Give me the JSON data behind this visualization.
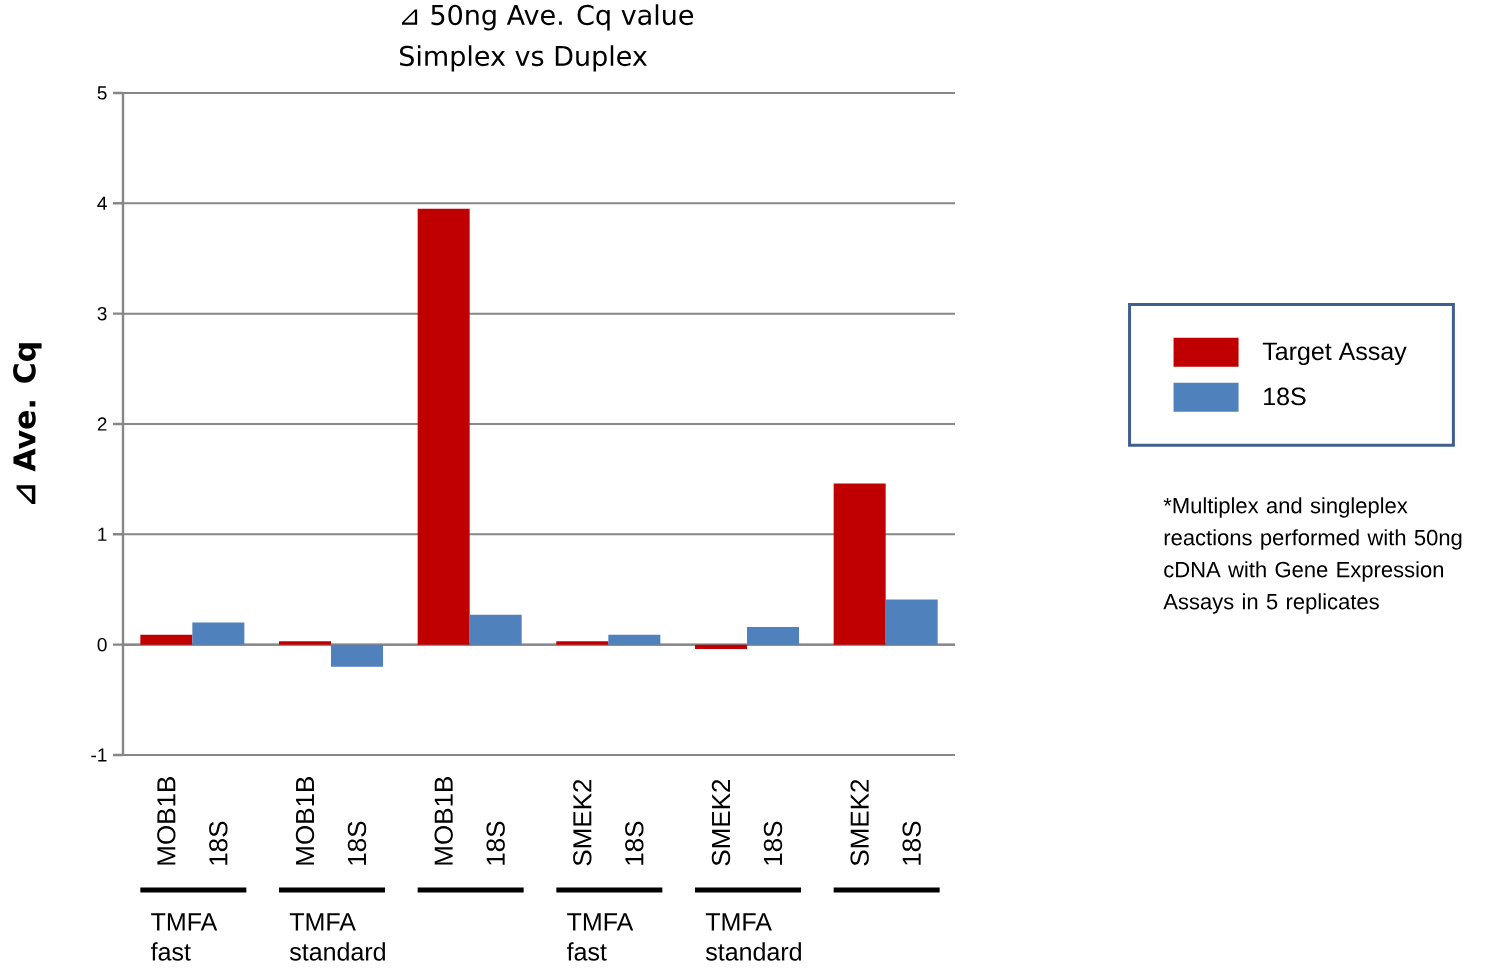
{
  "chart_data": {
    "type": "bar",
    "title": "⊿ 50ng Ave. Cq value",
    "subtitle": "Simplex vs Duplex",
    "ylabel": "⊿ Ave. Cq",
    "categories": [
      "MOB1B",
      "MOB1B",
      "MOB1B",
      "SMEK2",
      "SMEK2",
      "SMEK2"
    ],
    "series": [
      {
        "name": "Target Assay",
        "color": "#c00000",
        "values": [
          0.09,
          0.03,
          3.95,
          0.03,
          -0.04,
          1.46
        ]
      },
      {
        "name": "18S",
        "color": "#4f81bd",
        "values": [
          0.2,
          -0.2,
          0.27,
          0.09,
          0.16,
          0.41
        ]
      }
    ],
    "ylim": [
      -1,
      5
    ],
    "yticks": [
      -1,
      0,
      1,
      2,
      3,
      4,
      5
    ],
    "grid": "y",
    "legend": "right",
    "annotations": [
      "TMFA fast",
      "TMFA standard",
      "TMFA fast",
      "TMFA standard",
      "*Multiplex and singleplex reactions performed with 50ng cDNA with Gene Expression Assays in 5 replicates"
    ]
  }
}
